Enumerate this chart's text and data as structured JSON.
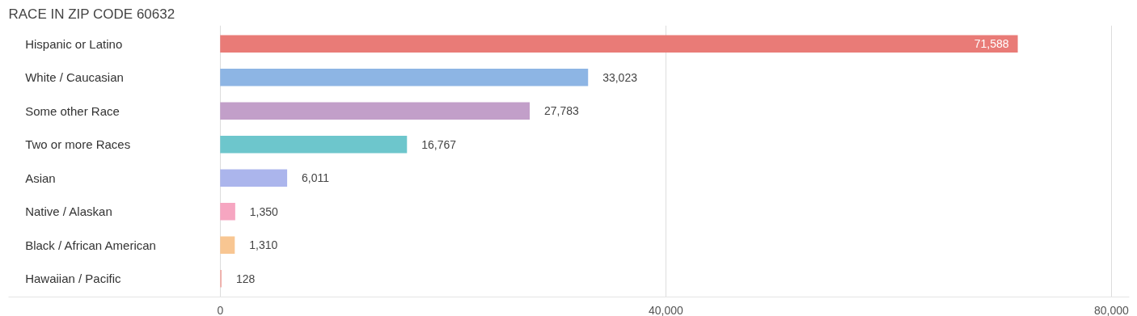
{
  "chart_data": {
    "type": "bar",
    "orientation": "horizontal",
    "title": "RACE IN ZIP CODE 60632",
    "categories": [
      "Hispanic or Latino",
      "White / Caucasian",
      "Some other Race",
      "Two or more Races",
      "Asian",
      "Native / Alaskan",
      "Black / African American",
      "Hawaiian / Pacific"
    ],
    "values": [
      71588,
      33023,
      27783,
      16767,
      6011,
      1350,
      1310,
      128
    ],
    "colors": [
      "#e97b77",
      "#8db5e4",
      "#c29fc9",
      "#6dc6cc",
      "#abb5ec",
      "#f6a6c1",
      "#f8c692",
      "#f1aba6"
    ],
    "xlim": [
      -19000,
      81600
    ],
    "xticks": [
      0,
      {
        "value": 40000,
        "label": "40,000"
      },
      {
        "value": 80000,
        "label": "80,000"
      }
    ],
    "value_labels": [
      "71,588",
      "33,023",
      "27,783",
      "16,767",
      "6,011",
      "1,350",
      "1,310",
      "128"
    ],
    "grid": "x"
  }
}
